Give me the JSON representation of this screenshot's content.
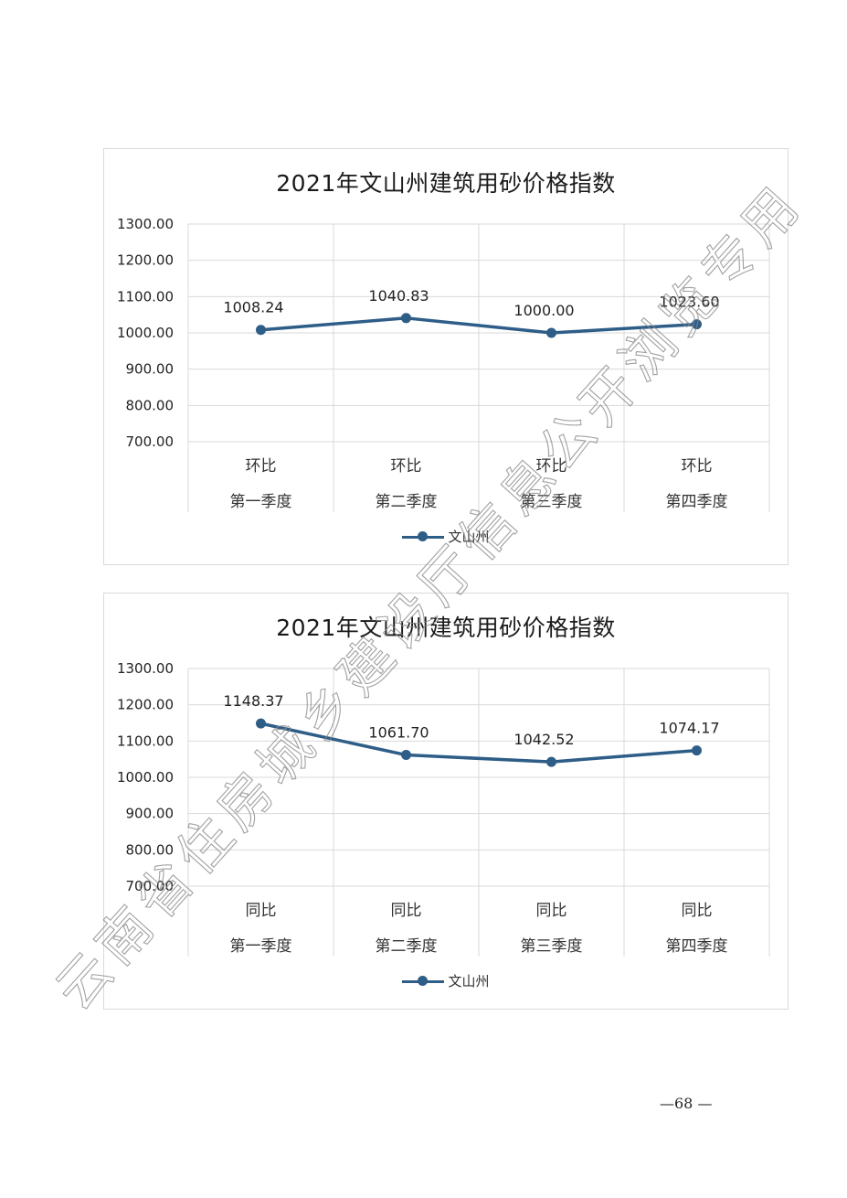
{
  "page": {
    "number_text": "—68 —"
  },
  "watermark": {
    "text": "云南省住房城乡建设厅信息公开浏览专用"
  },
  "chart_data": [
    {
      "type": "line",
      "title": "2021年文山州建筑用砂价格指数",
      "categories": [
        [
          "环比",
          "第一季度"
        ],
        [
          "环比",
          "第二季度"
        ],
        [
          "环比",
          "第三季度"
        ],
        [
          "环比",
          "第四季度"
        ]
      ],
      "series": [
        {
          "name": "文山州",
          "values": [
            1008.24,
            1040.83,
            1000.0,
            1023.6
          ],
          "labels": [
            "1008.24",
            "1040.83",
            "1000.00",
            "1023.60"
          ]
        }
      ],
      "ylim": [
        700,
        1300
      ],
      "yticks": [
        "1300.00",
        "1200.00",
        "1100.00",
        "1000.00",
        "900.00",
        "800.00",
        "700.00"
      ],
      "grid": true,
      "legend": "bottom",
      "color": "#2e5d87"
    },
    {
      "type": "line",
      "title": "2021年文山州建筑用砂价格指数",
      "categories": [
        [
          "同比",
          "第一季度"
        ],
        [
          "同比",
          "第二季度"
        ],
        [
          "同比",
          "第三季度"
        ],
        [
          "同比",
          "第四季度"
        ]
      ],
      "series": [
        {
          "name": "文山州",
          "values": [
            1148.37,
            1061.7,
            1042.52,
            1074.17
          ],
          "labels": [
            "1148.37",
            "1061.70",
            "1042.52",
            "1074.17"
          ]
        }
      ],
      "ylim": [
        700,
        1300
      ],
      "yticks": [
        "1300.00",
        "1200.00",
        "1100.00",
        "1000.00",
        "900.00",
        "800.00",
        "700.00"
      ],
      "grid": true,
      "legend": "bottom",
      "color": "#2e5d87"
    }
  ]
}
